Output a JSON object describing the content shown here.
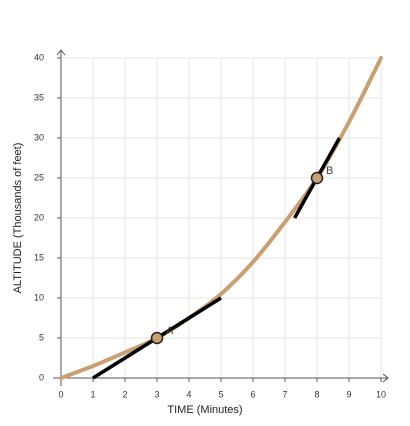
{
  "chart_data": {
    "type": "line",
    "x_label": "TIME (Minutes)",
    "y_label": "ALTITUDE (Thousands of feet)",
    "x": [
      0,
      1,
      2,
      3,
      4,
      5,
      6,
      7,
      8,
      9,
      10
    ],
    "series": [
      {
        "color": "#c9a071",
        "values": [
          0,
          1.5,
          3.2,
          5,
          7.5,
          10.5,
          14.5,
          19.5,
          25,
          32,
          40
        ]
      }
    ],
    "tangents": [
      {
        "x": [
          1,
          5
        ],
        "values": [
          0,
          10
        ],
        "color": "#000000"
      },
      {
        "x": [
          7.3,
          8.7
        ],
        "values": [
          20,
          30
        ],
        "color": "#000000"
      }
    ],
    "points": [
      {
        "label": "A",
        "x": 3,
        "y": 5,
        "color": "#c9a071"
      },
      {
        "label": "B",
        "x": 8,
        "y": 25,
        "color": "#c9a071"
      }
    ],
    "xlim": [
      0,
      10
    ],
    "ylim": [
      0,
      40
    ],
    "xticks": [
      0,
      1,
      2,
      3,
      4,
      5,
      6,
      7,
      8,
      9,
      10
    ],
    "yticks": [
      0,
      5,
      10,
      15,
      20,
      25,
      30,
      35,
      40
    ],
    "grid": true
  }
}
